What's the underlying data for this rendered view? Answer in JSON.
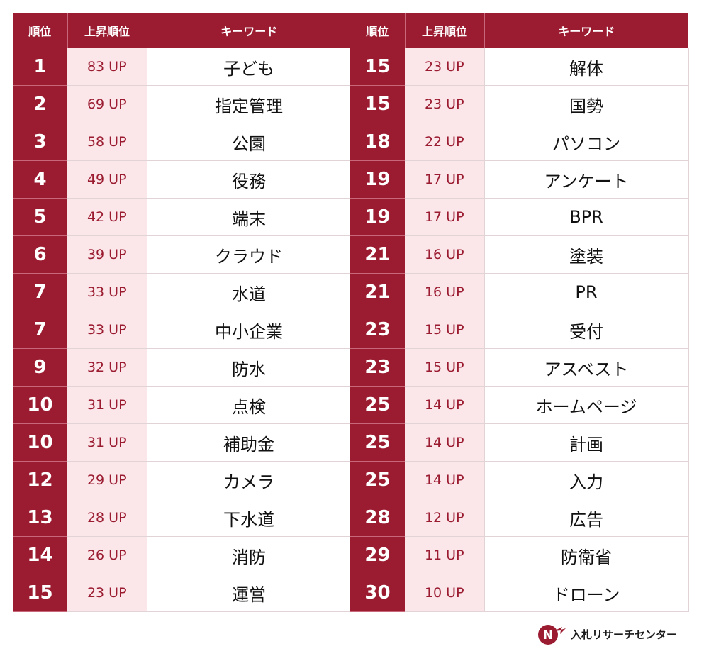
{
  "headers": {
    "rank": "順位",
    "up": "上昇順位",
    "keyword": "キーワード"
  },
  "left_rows": [
    {
      "rank": "1",
      "up": "83 UP",
      "keyword": "子ども"
    },
    {
      "rank": "2",
      "up": "69 UP",
      "keyword": "指定管理"
    },
    {
      "rank": "3",
      "up": "58 UP",
      "keyword": "公園"
    },
    {
      "rank": "4",
      "up": "49 UP",
      "keyword": "役務"
    },
    {
      "rank": "5",
      "up": "42 UP",
      "keyword": "端末"
    },
    {
      "rank": "6",
      "up": "39 UP",
      "keyword": "クラウド"
    },
    {
      "rank": "7",
      "up": "33 UP",
      "keyword": "水道"
    },
    {
      "rank": "7",
      "up": "33 UP",
      "keyword": "中小企業"
    },
    {
      "rank": "9",
      "up": "32 UP",
      "keyword": "防水"
    },
    {
      "rank": "10",
      "up": "31 UP",
      "keyword": "点検"
    },
    {
      "rank": "10",
      "up": "31 UP",
      "keyword": "補助金"
    },
    {
      "rank": "12",
      "up": "29 UP",
      "keyword": "カメラ"
    },
    {
      "rank": "13",
      "up": "28 UP",
      "keyword": "下水道"
    },
    {
      "rank": "14",
      "up": "26 UP",
      "keyword": "消防"
    },
    {
      "rank": "15",
      "up": "23 UP",
      "keyword": "運営"
    }
  ],
  "right_rows": [
    {
      "rank": "15",
      "up": "23 UP",
      "keyword": "解体"
    },
    {
      "rank": "15",
      "up": "23 UP",
      "keyword": "国勢"
    },
    {
      "rank": "18",
      "up": "22 UP",
      "keyword": "パソコン"
    },
    {
      "rank": "19",
      "up": "17 UP",
      "keyword": "アンケート"
    },
    {
      "rank": "19",
      "up": "17 UP",
      "keyword": "BPR"
    },
    {
      "rank": "21",
      "up": "16 UP",
      "keyword": "塗装"
    },
    {
      "rank": "21",
      "up": "16 UP",
      "keyword": "PR"
    },
    {
      "rank": "23",
      "up": "15 UP",
      "keyword": "受付"
    },
    {
      "rank": "23",
      "up": "15 UP",
      "keyword": "アスベスト"
    },
    {
      "rank": "25",
      "up": "14 UP",
      "keyword": "ホームページ"
    },
    {
      "rank": "25",
      "up": "14 UP",
      "keyword": "計画"
    },
    {
      "rank": "25",
      "up": "14 UP",
      "keyword": "入力"
    },
    {
      "rank": "28",
      "up": "12 UP",
      "keyword": "広告"
    },
    {
      "rank": "29",
      "up": "11 UP",
      "keyword": "防衛省"
    },
    {
      "rank": "30",
      "up": "10 UP",
      "keyword": "ドローン"
    }
  ],
  "brand": {
    "name": "入札リサーチセンター",
    "logo": "nr-arrow-logo"
  },
  "colors": {
    "accent": "#9b1c31",
    "up_bg": "#fbe6e9",
    "text": "#111111"
  }
}
